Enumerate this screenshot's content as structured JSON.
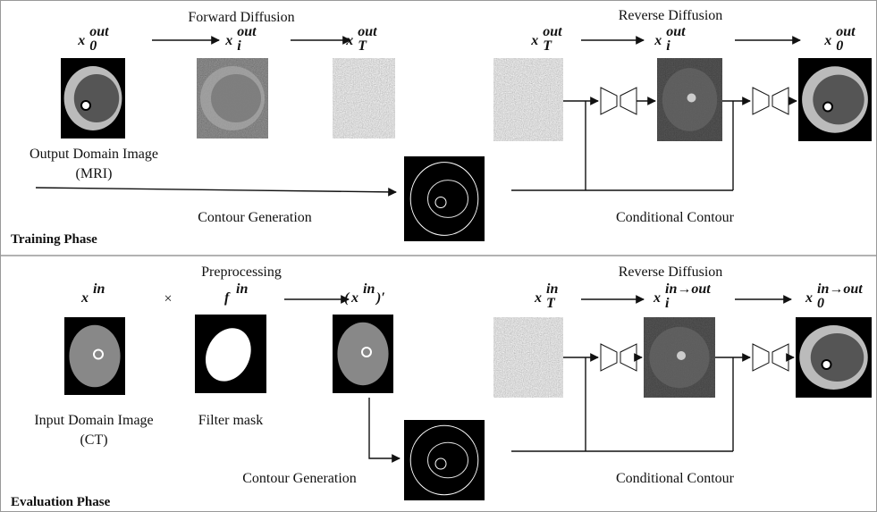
{
  "training": {
    "forward_title": "Forward Diffusion",
    "reverse_title": "Reverse Diffusion",
    "output_caption": [
      "Output Domain Image",
      "(MRI)"
    ],
    "contour_generation": "Contour Generation",
    "conditional_contour": "Conditional Contour",
    "phase_label": "Training Phase",
    "symbols": [
      {
        "base": "x",
        "sub": "0",
        "sup": "out"
      },
      {
        "base": "x",
        "sub": "i",
        "sup": "out"
      },
      {
        "base": "x",
        "sub": "T",
        "sup": "out"
      },
      {
        "base": "x",
        "sub": "T",
        "sup": "out"
      },
      {
        "base": "x",
        "sub": "i",
        "sup": "out"
      },
      {
        "base": "x",
        "sub": "0",
        "sup": "out"
      }
    ]
  },
  "evaluation": {
    "preprocessing_title": "Preprocessing",
    "times": "×",
    "reverse_title": "Reverse Diffusion",
    "input_caption": [
      "Input Domain Image",
      "(CT)"
    ],
    "filter_caption": "Filter mask",
    "contour_generation": "Contour Generation",
    "conditional_contour": "Conditional Contour",
    "phase_label": "Evaluation Phase",
    "symbols": [
      {
        "base": "x",
        "sup": "in"
      },
      {
        "base": "f",
        "sup": "in"
      },
      {
        "open": "(",
        "base": "x",
        "sup": "in",
        "close": ")′"
      },
      {
        "base": "x",
        "sub": "T",
        "sup": "in"
      },
      {
        "base": "x",
        "sub": "i",
        "sup": "in→out"
      },
      {
        "base": "x",
        "sub": "0",
        "sup": "in→out"
      }
    ]
  }
}
